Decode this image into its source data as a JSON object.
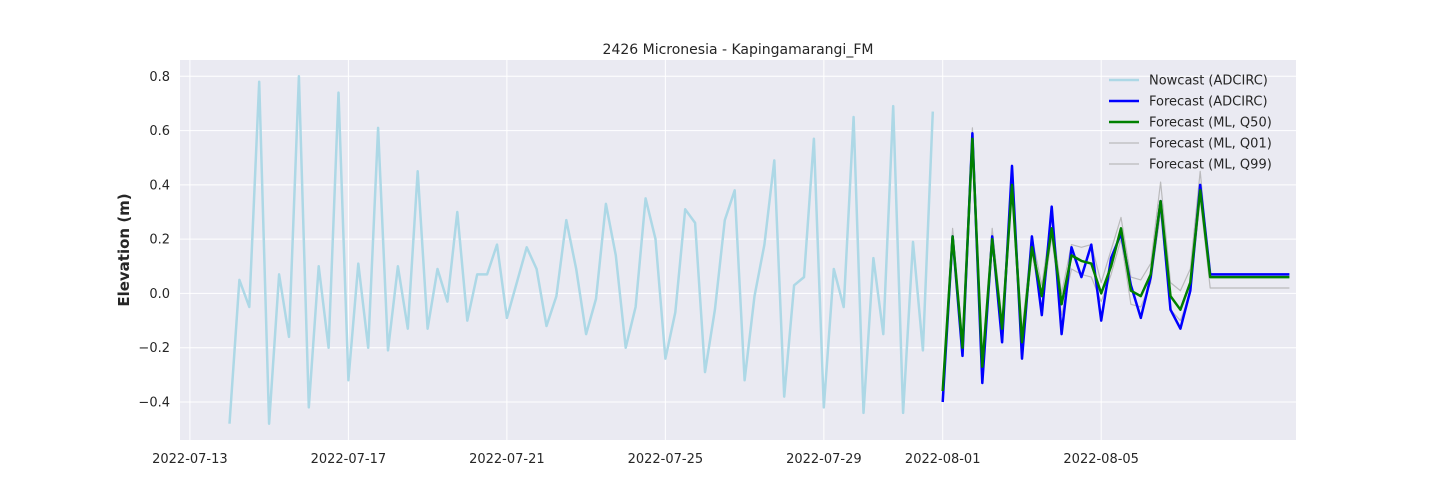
{
  "chart_data": {
    "type": "line",
    "title": "2426 Micronesia - Kapingamarangi_FM",
    "xlabel": "",
    "ylabel": "Elevation (m)",
    "xlim": [
      "2022-07-12 18:00",
      "2022-08-09 22:00"
    ],
    "ylim": [
      -0.54,
      0.86
    ],
    "x_ticks": [
      "2022-07-13",
      "2022-07-17",
      "2022-07-21",
      "2022-07-25",
      "2022-07-29",
      "2022-08-01",
      "2022-08-05"
    ],
    "y_ticks": [
      -0.4,
      -0.2,
      0.0,
      0.2,
      0.4,
      0.6,
      0.8
    ],
    "y_tick_labels": [
      "−0.4",
      "−0.2",
      "0.0",
      "0.2",
      "0.4",
      "0.6",
      "0.8"
    ],
    "grid": true,
    "legend_position": "top-right",
    "background_color": "#eaeaf2",
    "series": [
      {
        "name": "Nowcast (ADCIRC)",
        "color": "#add8e6",
        "x": [
          "2022-07-14 00:00",
          "2022-07-14 06:00",
          "2022-07-14 12:00",
          "2022-07-14 18:00",
          "2022-07-15 00:00",
          "2022-07-15 06:00",
          "2022-07-15 12:00",
          "2022-07-15 18:00",
          "2022-07-16 00:00",
          "2022-07-16 06:00",
          "2022-07-16 12:00",
          "2022-07-16 18:00",
          "2022-07-17 00:00",
          "2022-07-17 06:00",
          "2022-07-17 12:00",
          "2022-07-17 18:00",
          "2022-07-18 00:00",
          "2022-07-18 06:00",
          "2022-07-18 12:00",
          "2022-07-18 18:00",
          "2022-07-19 00:00",
          "2022-07-19 06:00",
          "2022-07-19 12:00",
          "2022-07-19 18:00",
          "2022-07-20 00:00",
          "2022-07-20 06:00",
          "2022-07-20 12:00",
          "2022-07-20 18:00",
          "2022-07-21 00:00",
          "2022-07-21 12:00",
          "2022-07-21 18:00",
          "2022-07-22 00:00",
          "2022-07-22 06:00",
          "2022-07-22 12:00",
          "2022-07-22 18:00",
          "2022-07-23 00:00",
          "2022-07-23 06:00",
          "2022-07-23 12:00",
          "2022-07-23 18:00",
          "2022-07-24 00:00",
          "2022-07-24 06:00",
          "2022-07-24 12:00",
          "2022-07-24 18:00",
          "2022-07-25 00:00",
          "2022-07-25 06:00",
          "2022-07-25 12:00",
          "2022-07-25 18:00",
          "2022-07-26 00:00",
          "2022-07-26 06:00",
          "2022-07-26 12:00",
          "2022-07-26 18:00",
          "2022-07-27 00:00",
          "2022-07-27 06:00",
          "2022-07-27 12:00",
          "2022-07-27 18:00",
          "2022-07-28 00:00",
          "2022-07-28 06:00",
          "2022-07-28 12:00",
          "2022-07-28 18:00",
          "2022-07-29 00:00",
          "2022-07-29 06:00",
          "2022-07-29 12:00",
          "2022-07-29 18:00",
          "2022-07-30 00:00",
          "2022-07-30 06:00",
          "2022-07-30 12:00",
          "2022-07-30 18:00",
          "2022-07-31 00:00",
          "2022-07-31 06:00",
          "2022-07-31 12:00",
          "2022-07-31 18:00"
        ],
        "y": [
          -0.48,
          0.05,
          -0.05,
          0.78,
          -0.48,
          0.07,
          -0.16,
          0.8,
          -0.42,
          0.1,
          -0.2,
          0.74,
          -0.32,
          0.11,
          -0.2,
          0.61,
          -0.21,
          0.1,
          -0.13,
          0.45,
          -0.13,
          0.09,
          -0.03,
          0.3,
          -0.1,
          0.07,
          0.07,
          0.18,
          -0.09,
          0.17,
          0.09,
          -0.12,
          -0.01,
          0.27,
          0.09,
          -0.15,
          -0.02,
          0.33,
          0.14,
          -0.2,
          -0.05,
          0.35,
          0.2,
          -0.24,
          -0.07,
          0.31,
          0.26,
          -0.29,
          -0.06,
          0.27,
          0.38,
          -0.32,
          -0.01,
          0.18,
          0.49,
          -0.38,
          0.03,
          0.06,
          0.57,
          -0.42,
          0.09,
          -0.05,
          0.65,
          -0.44,
          0.13,
          -0.15,
          0.69,
          -0.44,
          0.19,
          -0.21,
          0.67
        ]
      },
      {
        "name": "Forecast (ADCIRC)",
        "color": "#0000ff",
        "x": [
          "2022-08-01 00:00",
          "2022-08-01 06:00",
          "2022-08-01 12:00",
          "2022-08-01 18:00",
          "2022-08-02 00:00",
          "2022-08-02 06:00",
          "2022-08-02 12:00",
          "2022-08-02 18:00",
          "2022-08-03 00:00",
          "2022-08-03 06:00",
          "2022-08-03 12:00",
          "2022-08-03 18:00",
          "2022-08-04 00:00",
          "2022-08-04 06:00",
          "2022-08-04 12:00",
          "2022-08-04 18:00",
          "2022-08-05 00:00",
          "2022-08-05 06:00",
          "2022-08-05 12:00",
          "2022-08-05 18:00",
          "2022-08-06 00:00",
          "2022-08-06 06:00",
          "2022-08-06 12:00",
          "2022-08-06 18:00",
          "2022-08-07 00:00",
          "2022-08-07 06:00",
          "2022-08-07 12:00",
          "2022-08-07 18:00",
          "2022-08-08 00:00",
          "2022-08-08 06:00",
          "2022-08-08 12:00",
          "2022-08-08 18:00",
          "2022-08-09 00:00",
          "2022-08-09 06:00",
          "2022-08-09 12:00",
          "2022-08-09 18:00"
        ],
        "y": [
          -0.4,
          0.21,
          -0.23,
          0.59,
          -0.33,
          0.21,
          -0.18,
          0.47,
          -0.24,
          0.21,
          -0.08,
          0.32,
          -0.15,
          0.17,
          0.06,
          0.18,
          -0.1,
          0.13,
          0.22,
          0.03,
          -0.09,
          0.06,
          0.34,
          -0.06,
          -0.13,
          0.01,
          0.4,
          0.07,
          0.07,
          0.07,
          0.07,
          0.07,
          0.07,
          0.07,
          0.07,
          0.07
        ]
      },
      {
        "name": "Forecast (ML, Q50)",
        "color": "#008000",
        "x": [
          "2022-08-01 00:00",
          "2022-08-01 06:00",
          "2022-08-01 12:00",
          "2022-08-01 18:00",
          "2022-08-02 00:00",
          "2022-08-02 06:00",
          "2022-08-02 12:00",
          "2022-08-02 18:00",
          "2022-08-03 00:00",
          "2022-08-03 06:00",
          "2022-08-03 12:00",
          "2022-08-03 18:00",
          "2022-08-04 00:00",
          "2022-08-04 06:00",
          "2022-08-04 12:00",
          "2022-08-04 18:00",
          "2022-08-05 00:00",
          "2022-08-05 06:00",
          "2022-08-05 12:00",
          "2022-08-05 18:00",
          "2022-08-06 00:00",
          "2022-08-06 06:00",
          "2022-08-06 12:00",
          "2022-08-06 18:00",
          "2022-08-07 00:00",
          "2022-08-07 06:00",
          "2022-08-07 12:00",
          "2022-08-07 18:00",
          "2022-08-08 00:00",
          "2022-08-08 06:00",
          "2022-08-08 12:00",
          "2022-08-08 18:00",
          "2022-08-09 00:00",
          "2022-08-09 06:00",
          "2022-08-09 12:00",
          "2022-08-09 18:00"
        ],
        "y": [
          -0.36,
          0.21,
          -0.2,
          0.57,
          -0.27,
          0.2,
          -0.13,
          0.4,
          -0.18,
          0.17,
          -0.01,
          0.24,
          -0.04,
          0.14,
          0.12,
          0.11,
          0.0,
          0.1,
          0.24,
          0.01,
          -0.01,
          0.07,
          0.34,
          -0.01,
          -0.06,
          0.04,
          0.38,
          0.06,
          0.06,
          0.06,
          0.06,
          0.06,
          0.06,
          0.06,
          0.06,
          0.06
        ]
      },
      {
        "name": "Forecast (ML, Q01)",
        "color": "#a9a9a9",
        "x": [
          "2022-08-01 00:00",
          "2022-08-01 06:00",
          "2022-08-01 12:00",
          "2022-08-01 18:00",
          "2022-08-02 00:00",
          "2022-08-02 06:00",
          "2022-08-02 12:00",
          "2022-08-02 18:00",
          "2022-08-03 00:00",
          "2022-08-03 06:00",
          "2022-08-03 12:00",
          "2022-08-03 18:00",
          "2022-08-04 00:00",
          "2022-08-04 06:00",
          "2022-08-04 12:00",
          "2022-08-04 18:00",
          "2022-08-05 00:00",
          "2022-08-05 06:00",
          "2022-08-05 12:00",
          "2022-08-05 18:00",
          "2022-08-06 00:00",
          "2022-08-06 06:00",
          "2022-08-06 12:00",
          "2022-08-06 18:00",
          "2022-08-07 00:00",
          "2022-08-07 06:00",
          "2022-08-07 12:00",
          "2022-08-07 18:00",
          "2022-08-08 00:00",
          "2022-08-08 06:00",
          "2022-08-08 12:00",
          "2022-08-08 18:00",
          "2022-08-09 00:00",
          "2022-08-09 06:00",
          "2022-08-09 12:00",
          "2022-08-09 18:00"
        ],
        "y": [
          -0.39,
          0.19,
          -0.22,
          0.55,
          -0.3,
          0.18,
          -0.16,
          0.38,
          -0.22,
          0.15,
          -0.05,
          0.21,
          -0.08,
          0.09,
          0.07,
          0.06,
          -0.03,
          0.07,
          0.2,
          -0.04,
          -0.05,
          0.04,
          0.3,
          -0.06,
          -0.1,
          0.0,
          0.35,
          0.02,
          0.02,
          0.02,
          0.02,
          0.02,
          0.02,
          0.02,
          0.02,
          0.02
        ]
      },
      {
        "name": "Forecast (ML, Q99)",
        "color": "#a9a9a9",
        "x": [
          "2022-08-01 00:00",
          "2022-08-01 06:00",
          "2022-08-01 12:00",
          "2022-08-01 18:00",
          "2022-08-02 00:00",
          "2022-08-02 06:00",
          "2022-08-02 12:00",
          "2022-08-02 18:00",
          "2022-08-03 00:00",
          "2022-08-03 06:00",
          "2022-08-03 12:00",
          "2022-08-03 18:00",
          "2022-08-04 00:00",
          "2022-08-04 06:00",
          "2022-08-04 12:00",
          "2022-08-04 18:00",
          "2022-08-05 00:00",
          "2022-08-05 06:00",
          "2022-08-05 12:00",
          "2022-08-05 18:00",
          "2022-08-06 00:00",
          "2022-08-06 06:00",
          "2022-08-06 12:00",
          "2022-08-06 18:00",
          "2022-08-07 00:00",
          "2022-08-07 06:00",
          "2022-08-07 12:00",
          "2022-08-07 18:00",
          "2022-08-08 00:00",
          "2022-08-08 06:00",
          "2022-08-08 12:00",
          "2022-08-08 18:00",
          "2022-08-09 00:00",
          "2022-08-09 06:00",
          "2022-08-09 12:00",
          "2022-08-09 18:00"
        ],
        "y": [
          -0.33,
          0.24,
          -0.17,
          0.61,
          -0.24,
          0.24,
          -0.1,
          0.45,
          -0.14,
          0.21,
          0.03,
          0.28,
          0.0,
          0.18,
          0.17,
          0.18,
          0.04,
          0.16,
          0.28,
          0.06,
          0.05,
          0.11,
          0.41,
          0.04,
          0.01,
          0.09,
          0.45,
          0.06,
          0.06,
          0.06,
          0.06,
          0.06,
          0.06,
          0.06,
          0.06,
          0.06
        ]
      }
    ]
  }
}
